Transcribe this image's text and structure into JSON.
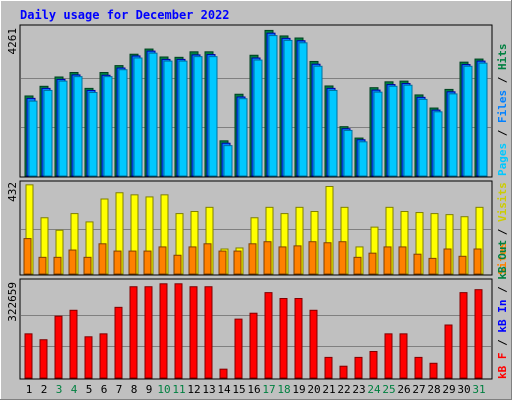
{
  "title": "Daily usage for December 2022",
  "colors": {
    "background": "#c0c0c0",
    "title": "#0000ff",
    "pages": "#00c8ff",
    "pages_dark": "#0070a0",
    "files": "#0080ff",
    "files_dark": "#0000a0",
    "hits": "#008040",
    "hits_dark": "#004020",
    "visits": "#ffff00",
    "sites": "#ff8000",
    "kbin": "#0000ff",
    "kbout": "#008040",
    "kbf": "#ff0000",
    "weekend": "#008040"
  },
  "right_labels": {
    "top": {
      "pages": "Pages",
      "files": "Files",
      "hits": "Hits",
      "sep": " / "
    },
    "middle": {
      "sites": "Sites",
      "visits": "Visits",
      "sep": " / "
    },
    "bottom": {
      "kbf": "kB F",
      "kbin": "kB In",
      "kbout": "kB Out",
      "sep": " / "
    }
  },
  "chart_data": [
    {
      "type": "bar",
      "name": "hits-files-pages",
      "categories": [
        "1",
        "2",
        "3",
        "4",
        "5",
        "6",
        "7",
        "8",
        "9",
        "10",
        "11",
        "12",
        "13",
        "14",
        "15",
        "16",
        "17",
        "18",
        "19",
        "20",
        "21",
        "22",
        "23",
        "24",
        "25",
        "26",
        "27",
        "28",
        "29",
        "30",
        "31"
      ],
      "weekend_days": [
        "3",
        "4",
        "10",
        "11",
        "17",
        "18",
        "24",
        "25",
        "31"
      ],
      "ymax_label": "4261",
      "ylim": [
        0,
        4261
      ],
      "series": [
        {
          "name": "Hits",
          "values": [
            2320,
            2600,
            2870,
            3000,
            2540,
            3000,
            3200,
            3530,
            3680,
            3450,
            3440,
            3600,
            3600,
            1020,
            2370,
            3500,
            4220,
            4060,
            4000,
            3320,
            2610,
            1430,
            1100,
            2560,
            2730,
            2750,
            2350,
            1970,
            2510,
            3300,
            3390
          ]
        },
        {
          "name": "Files",
          "values": [
            2250,
            2540,
            2800,
            2930,
            2480,
            2920,
            3130,
            3480,
            3620,
            3380,
            3380,
            3510,
            3520,
            950,
            2290,
            3420,
            4140,
            3990,
            3920,
            3240,
            2540,
            1370,
            1050,
            2490,
            2650,
            2680,
            2280,
            1910,
            2440,
            3230,
            3330
          ]
        },
        {
          "name": "Pages",
          "values": [
            2170,
            2480,
            2750,
            2880,
            2420,
            2880,
            3080,
            3420,
            3560,
            3330,
            3330,
            3460,
            3460,
            880,
            2240,
            3360,
            4070,
            3930,
            3860,
            3180,
            2480,
            1320,
            990,
            2430,
            2600,
            2630,
            2220,
            1860,
            2380,
            3180,
            3270
          ]
        }
      ]
    },
    {
      "type": "bar",
      "name": "visits-sites",
      "categories": [
        "1",
        "2",
        "3",
        "4",
        "5",
        "6",
        "7",
        "8",
        "9",
        "10",
        "11",
        "12",
        "13",
        "14",
        "15",
        "16",
        "17",
        "18",
        "19",
        "20",
        "21",
        "22",
        "23",
        "24",
        "25",
        "26",
        "27",
        "28",
        "29",
        "30",
        "31"
      ],
      "ymax_label": "432",
      "ylim": [
        0,
        432
      ],
      "series": [
        {
          "name": "Visits",
          "values": [
            428,
            270,
            210,
            290,
            250,
            360,
            390,
            380,
            370,
            380,
            290,
            300,
            320,
            120,
            125,
            270,
            320,
            290,
            320,
            300,
            420,
            320,
            130,
            225,
            320,
            300,
            295,
            290,
            285,
            275,
            320
          ]
        },
        {
          "name": "Sites",
          "values": [
            170,
            80,
            80,
            115,
            80,
            145,
            110,
            110,
            110,
            130,
            90,
            130,
            145,
            110,
            110,
            145,
            155,
            130,
            135,
            155,
            150,
            155,
            80,
            100,
            130,
            130,
            95,
            75,
            120,
            85,
            120
          ]
        }
      ]
    },
    {
      "type": "bar",
      "name": "kbytes",
      "categories": [
        "1",
        "2",
        "3",
        "4",
        "5",
        "6",
        "7",
        "8",
        "9",
        "10",
        "11",
        "12",
        "13",
        "14",
        "15",
        "16",
        "17",
        "18",
        "19",
        "20",
        "21",
        "22",
        "23",
        "24",
        "25",
        "26",
        "27",
        "28",
        "29",
        "30",
        "31"
      ],
      "ymax_label": "322659",
      "ylim": [
        0,
        322659
      ],
      "series": [
        {
          "name": "kB F",
          "values": [
            150000,
            130000,
            210000,
            230000,
            140000,
            150000,
            240000,
            310000,
            310000,
            320000,
            320000,
            310000,
            310000,
            30000,
            200000,
            220000,
            290000,
            270000,
            270000,
            230000,
            70000,
            40000,
            70000,
            90000,
            150000,
            150000,
            70000,
            50000,
            180000,
            290000,
            300000
          ]
        }
      ]
    }
  ]
}
